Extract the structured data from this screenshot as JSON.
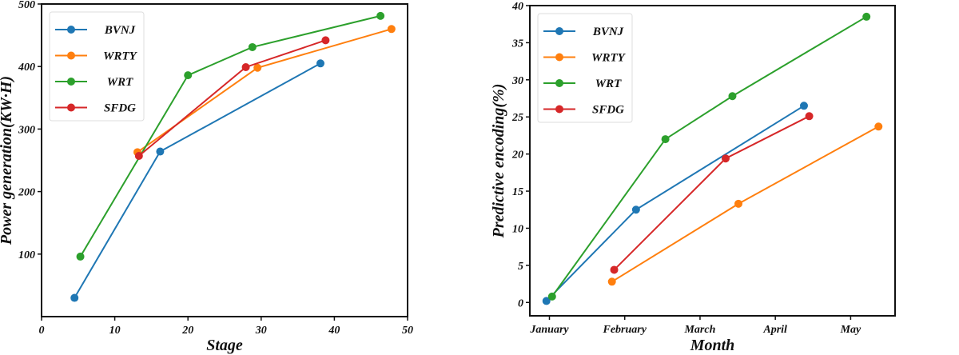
{
  "colors": {
    "BVNJ": "#1f77b4",
    "WRTY": "#ff7f0e",
    "WRT": "#2ca02c",
    "SFDG": "#d62728"
  },
  "chart_data": [
    {
      "type": "line",
      "xlabel": "Stage",
      "ylabel": "Power generation(KW·H)",
      "xlim": [
        0,
        50
      ],
      "ylim": [
        0,
        500
      ],
      "xticks": [
        0,
        10,
        20,
        30,
        40,
        50
      ],
      "yticks": [
        100,
        200,
        300,
        400,
        500
      ],
      "grid": false,
      "legend": "top-left",
      "series": [
        {
          "name": "BVNJ",
          "x": [
            4.5,
            16.2,
            38.1
          ],
          "y": [
            30,
            264,
            405
          ]
        },
        {
          "name": "WRTY",
          "x": [
            13.1,
            29.5,
            47.8
          ],
          "y": [
            263,
            398,
            460
          ]
        },
        {
          "name": "WRT",
          "x": [
            5.3,
            20,
            28.8,
            46.3
          ],
          "y": [
            96,
            386,
            431,
            481
          ]
        },
        {
          "name": "SFDG",
          "x": [
            13.3,
            27.9,
            38.8
          ],
          "y": [
            257,
            399,
            442
          ]
        }
      ]
    },
    {
      "type": "line",
      "xlabel": "Month",
      "ylabel": "Predictive encoding(%)",
      "categories": [
        "January",
        "February",
        "March",
        "April",
        "May"
      ],
      "xlim": [
        -0.26,
        4.59
      ],
      "ylim": [
        -1.8,
        40
      ],
      "yticks": [
        0,
        5,
        10,
        15,
        20,
        25,
        30,
        35,
        40
      ],
      "grid": false,
      "legend": "top-left",
      "series": [
        {
          "name": "BVNJ",
          "x": [
            -0.04,
            1.15,
            3.38
          ],
          "y": [
            0.2,
            12.5,
            26.5
          ]
        },
        {
          "name": "WRTY",
          "x": [
            0.83,
            2.51,
            4.37
          ],
          "y": [
            2.8,
            13.3,
            23.7
          ]
        },
        {
          "name": "WRT",
          "x": [
            0.035,
            1.54,
            2.43,
            4.21
          ],
          "y": [
            0.8,
            22,
            27.8,
            38.5
          ]
        },
        {
          "name": "SFDG",
          "x": [
            0.86,
            2.34,
            3.45
          ],
          "y": [
            4.4,
            19.4,
            25.1
          ]
        }
      ]
    }
  ]
}
